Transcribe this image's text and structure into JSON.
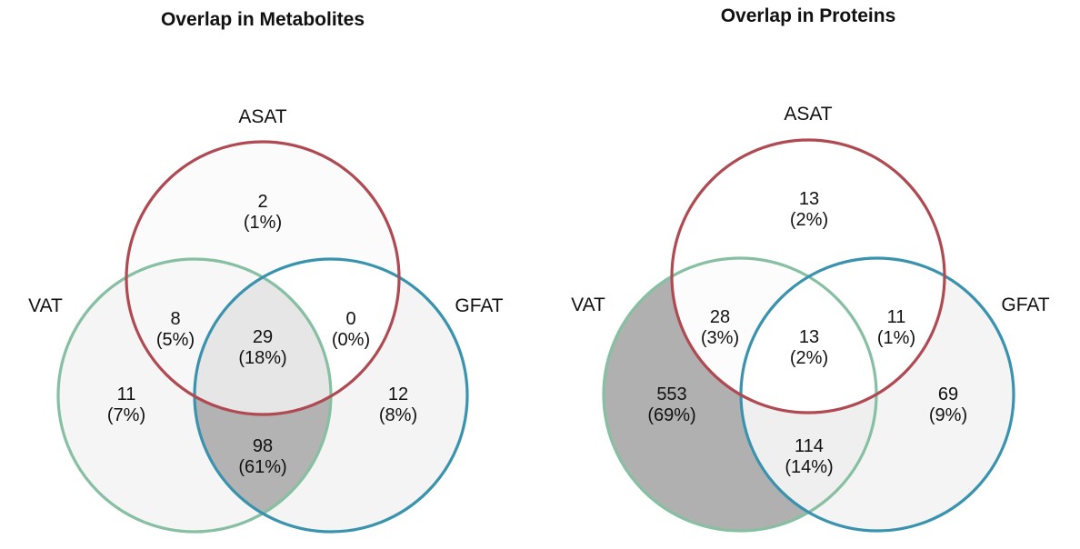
{
  "chart_data": [
    {
      "type": "venn",
      "title": "Overlap in Metabolites",
      "sets": [
        {
          "name": "ASAT",
          "color": "#B04A52"
        },
        {
          "name": "VAT",
          "color": "#86BFA2"
        },
        {
          "name": "GFAT",
          "color": "#3A93AE"
        }
      ],
      "regions": [
        {
          "id": "asat_only",
          "sets": [
            "ASAT"
          ],
          "count": "2",
          "percent": "(1%)",
          "shade": "#FBFBFB"
        },
        {
          "id": "vat_asat",
          "sets": [
            "VAT",
            "ASAT"
          ],
          "count": "8",
          "percent": "(5%)",
          "shade": "#F7F7F7"
        },
        {
          "id": "asat_gfat",
          "sets": [
            "ASAT",
            "GFAT"
          ],
          "count": "0",
          "percent": "(0%)",
          "shade": "#FFFFFF"
        },
        {
          "id": "all_three",
          "sets": [
            "VAT",
            "ASAT",
            "GFAT"
          ],
          "count": "29",
          "percent": "(18%)",
          "shade": "#E6E6E6"
        },
        {
          "id": "vat_only",
          "sets": [
            "VAT"
          ],
          "count": "11",
          "percent": "(7%)",
          "shade": "#F5F5F5"
        },
        {
          "id": "gfat_only",
          "sets": [
            "GFAT"
          ],
          "count": "12",
          "percent": "(8%)",
          "shade": "#F4F4F4"
        },
        {
          "id": "vat_gfat",
          "sets": [
            "VAT",
            "GFAT"
          ],
          "count": "98",
          "percent": "(61%)",
          "shade": "#B3B3B3"
        }
      ]
    },
    {
      "type": "venn",
      "title": "Overlap in Proteins",
      "sets": [
        {
          "name": "ASAT",
          "color": "#B04A52"
        },
        {
          "name": "VAT",
          "color": "#86BFA2"
        },
        {
          "name": "GFAT",
          "color": "#3A93AE"
        }
      ],
      "regions": [
        {
          "id": "asat_only",
          "sets": [
            "ASAT"
          ],
          "count": "13",
          "percent": "(2%)",
          "shade": "#FFFFFF"
        },
        {
          "id": "vat_asat",
          "sets": [
            "VAT",
            "ASAT"
          ],
          "count": "28",
          "percent": "(3%)",
          "shade": "#FCFCFC"
        },
        {
          "id": "asat_gfat",
          "sets": [
            "ASAT",
            "GFAT"
          ],
          "count": "11",
          "percent": "(1%)",
          "shade": "#FFFFFF"
        },
        {
          "id": "all_three",
          "sets": [
            "VAT",
            "ASAT",
            "GFAT"
          ],
          "count": "13",
          "percent": "(2%)",
          "shade": "#FFFFFF"
        },
        {
          "id": "vat_only",
          "sets": [
            "VAT"
          ],
          "count": "553",
          "percent": "(69%)",
          "shade": "#B0B0B0"
        },
        {
          "id": "gfat_only",
          "sets": [
            "GFAT"
          ],
          "count": "69",
          "percent": "(9%)",
          "shade": "#F4F4F4"
        },
        {
          "id": "vat_gfat",
          "sets": [
            "VAT",
            "GFAT"
          ],
          "count": "114",
          "percent": "(14%)",
          "shade": "#EFEFEF"
        }
      ]
    }
  ]
}
